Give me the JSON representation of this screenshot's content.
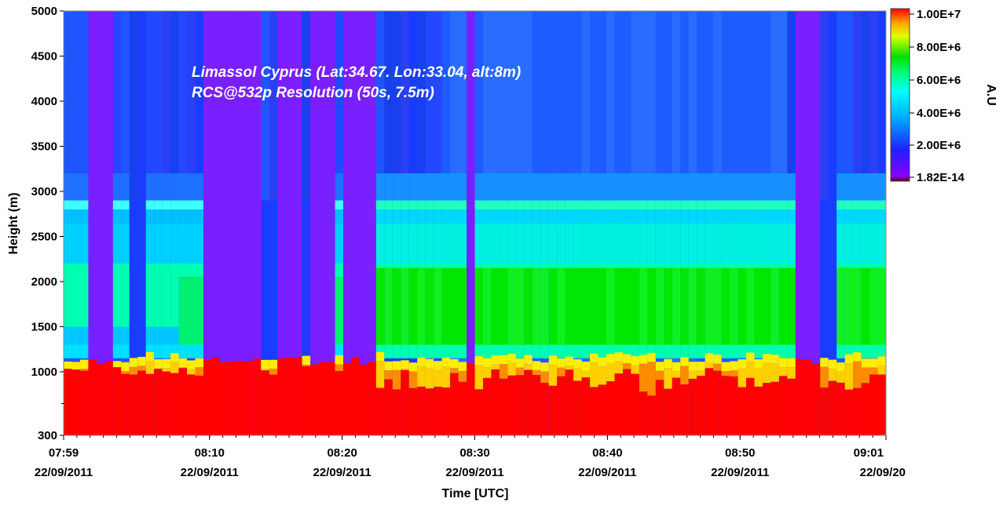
{
  "chart_data": {
    "type": "heatmap",
    "title": "Limassol Cyprus (Lat:34.67. Lon:33.04, alt:8m)",
    "subtitle": "RCS@532p Resolution (50s, 7.5m)",
    "xlabel": "Time [UTC]",
    "ylabel": "Height (m)",
    "colorbar_label": "A.U",
    "x_range": [
      "2011-09-22 07:59",
      "2011-09-22 09:01"
    ],
    "x_ticks": [
      {
        "time": "07:59",
        "date": "22/09/2011"
      },
      {
        "time": "08:10",
        "date": "22/09/2011"
      },
      {
        "time": "08:20",
        "date": "22/09/2011"
      },
      {
        "time": "08:30",
        "date": "22/09/2011"
      },
      {
        "time": "08:40",
        "date": "22/09/2011"
      },
      {
        "time": "08:50",
        "date": "22/09/2011"
      },
      {
        "time": "09:01",
        "date": "22/09/20"
      }
    ],
    "y_range": [
      300,
      5000
    ],
    "y_ticks": [
      300,
      1000,
      1500,
      2000,
      2500,
      3000,
      3500,
      4000,
      4500,
      5000
    ],
    "colorbar_ticks": [
      "1.00E+7",
      "8.00E+6",
      "6.00E+6",
      "4.00E+6",
      "2.00E+6",
      "1.82E-14"
    ],
    "colorbar_range": [
      1.82e-14,
      10000000.0
    ],
    "colors": {
      "red": "#ff0000",
      "orange": "#ff8c00",
      "yellow": "#ffee00",
      "green": "#00e000",
      "cyan": "#00ffff",
      "blue": "#1050ff",
      "violet": "#7a1fff",
      "darkred": "#600000"
    }
  }
}
